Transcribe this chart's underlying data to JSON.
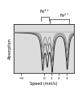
{
  "xlabel": "Speed (mm/s)",
  "ylabel": "Absorption",
  "xlim": [
    -4,
    4
  ],
  "ylim": [
    -0.38,
    0.08
  ],
  "background_color": "#ffffff",
  "plot_bg": "#dcdcdc",
  "fe3_label": "Fe$^{3+}$",
  "fe2_label": "Fe$^{2+}$",
  "line_color1": "#2a2a2a",
  "line_color2": "#555555",
  "line_color3": "#888888",
  "xticks": [
    -3,
    0,
    1,
    2,
    3
  ],
  "fe3_peak1": -0.15,
  "fe3_peak2": 0.45,
  "fe2_peak1": 1.1,
  "fe2_peak2": 3.1
}
